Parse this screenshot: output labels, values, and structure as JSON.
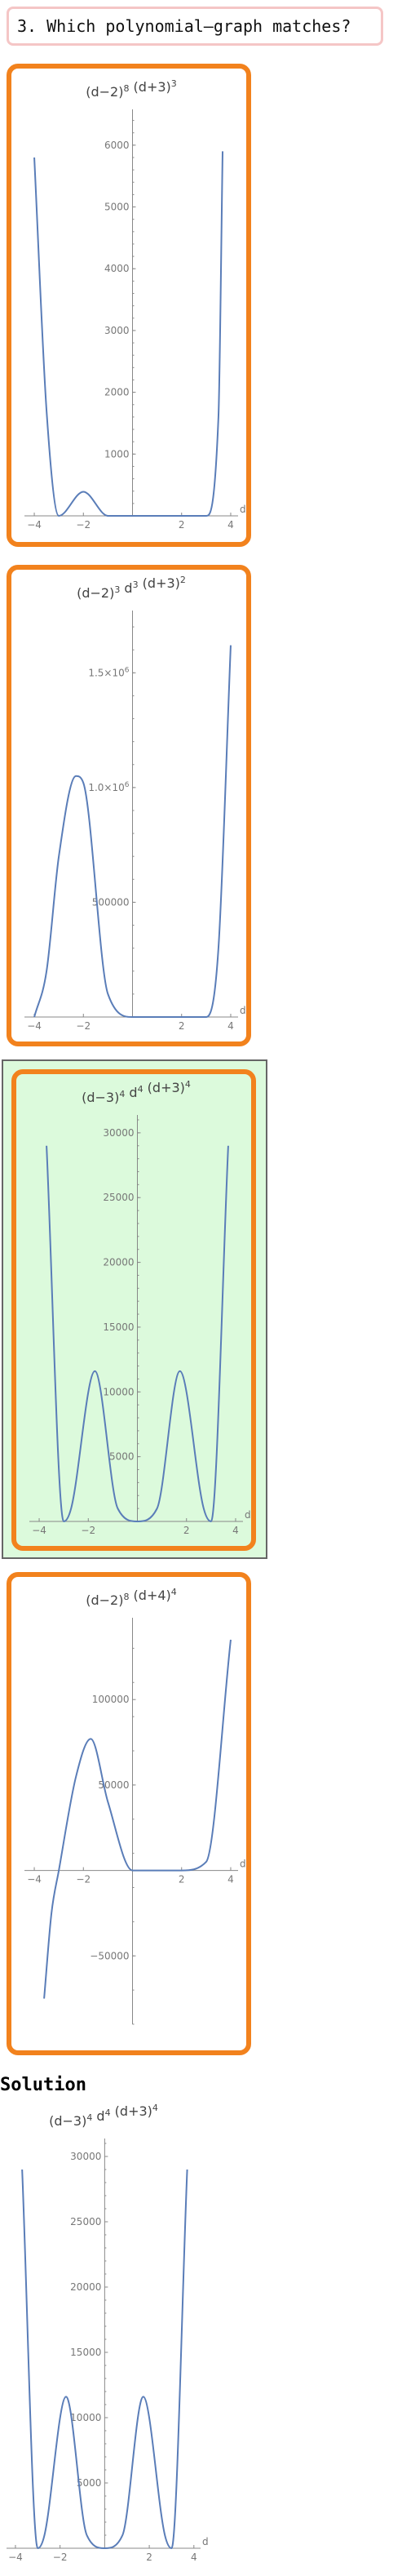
{
  "question": {
    "text": "3. Which polynomial–graph matches?"
  },
  "colors": {
    "choice_border": "#f2821d",
    "correct_bg": "#dcfadc",
    "curve": "#5a7db8",
    "question_border": "#f5c6c6"
  },
  "solution": {
    "heading": "Solution"
  },
  "charts": [
    {
      "id": "choice-1",
      "chart_data": {
        "type": "line",
        "title": "(d − 2)^8 (d + 3)^3",
        "title_parts": [
          "(d−2)",
          "8",
          "(d+3)",
          "3"
        ],
        "xlabel": "d",
        "ylabel": "",
        "xlim": [
          -4.4,
          4.3
        ],
        "ylim": [
          0,
          6500
        ],
        "xticks": [
          -4,
          -2,
          2,
          4
        ],
        "yticks": [
          1000,
          2000,
          3000,
          4000,
          5000,
          6000
        ],
        "ytick_labels": [
          "1000",
          "2000",
          "3000",
          "4000",
          "5000",
          "6000"
        ],
        "x": [
          -4.0,
          -3.5,
          -3.0,
          -2.0,
          -1.0,
          0.0,
          1.0,
          2.0,
          3.0,
          3.5,
          3.67
        ],
        "y": [
          5800,
          1700,
          0,
          390,
          0,
          0,
          0,
          0,
          0,
          1600,
          5900
        ],
        "grid": false
      }
    },
    {
      "id": "choice-2",
      "chart_data": {
        "type": "line",
        "title": "(d − 2)^3 d^3 (d + 3)^2",
        "title_parts": [
          "(d−2)",
          "3",
          "d",
          "3",
          "(d+3)",
          "2"
        ],
        "xlabel": "d",
        "ylabel": "",
        "xlim": [
          -4.4,
          4.3
        ],
        "ylim": [
          0,
          1750000
        ],
        "xticks": [
          -4,
          -2,
          2,
          4
        ],
        "yticks": [
          500000,
          1000000,
          1500000
        ],
        "ytick_labels": [
          "500000",
          "1.0×10^6",
          "1.5×10^6"
        ],
        "x": [
          -4.0,
          -3.5,
          -3.0,
          -2.3,
          -2.0,
          -1.0,
          0.0,
          1.0,
          2.0,
          3.0,
          3.5,
          4.0
        ],
        "y": [
          0,
          200000,
          700000,
          1050000,
          1020000,
          100000,
          0,
          0,
          0,
          0,
          300000,
          1620000
        ],
        "grid": false
      }
    },
    {
      "id": "choice-3",
      "chart_data": {
        "type": "line",
        "title": "(d − 3)^4 d^4 (d + 3)^4",
        "title_parts": [
          "(d−3)",
          "4",
          "d",
          "4",
          "(d+3)",
          "4"
        ],
        "xlabel": "d",
        "ylabel": "",
        "xlim": [
          -4.4,
          4.3
        ],
        "ylim": [
          0,
          31000
        ],
        "xticks": [
          -4,
          -2,
          2,
          4
        ],
        "yticks": [
          5000,
          10000,
          15000,
          20000,
          25000,
          30000
        ],
        "ytick_labels": [
          "5000",
          "10000",
          "15000",
          "20000",
          "25000",
          "30000"
        ],
        "x": [
          -3.7,
          -3.0,
          -2.7,
          -1.73,
          -0.8,
          0.0,
          0.8,
          1.73,
          2.7,
          3.0,
          3.7
        ],
        "y": [
          29000,
          0,
          1000,
          11600,
          1000,
          0,
          1000,
          11600,
          1000,
          0,
          29000
        ],
        "grid": false
      }
    },
    {
      "id": "choice-4",
      "chart_data": {
        "type": "line",
        "title": "(d − 2)^8 (d + 4)^4",
        "title_parts": [
          "(d−2)",
          "8",
          "(d+4)",
          "4"
        ],
        "xlabel": "d",
        "ylabel": "",
        "xlim": [
          -4.4,
          4.3
        ],
        "ylim": [
          -90000,
          145000
        ],
        "xticks": [
          -4,
          -2,
          2,
          4
        ],
        "yticks": [
          -50000,
          50000,
          100000
        ],
        "ytick_labels": [
          "−50000",
          "50000",
          "100000"
        ],
        "x": [
          -3.6,
          -3.3,
          -3.0,
          -2.3,
          -1.7,
          -1.0,
          0.0,
          1.0,
          2.0,
          3.0,
          4.0
        ],
        "y": [
          -75000,
          -25000,
          0,
          55000,
          77000,
          40000,
          0,
          0,
          0,
          5000,
          135000
        ],
        "grid": false
      }
    },
    {
      "id": "solution-chart",
      "chart_data": {
        "type": "line",
        "title": "(d − 3)^4 d^4 (d + 3)^4",
        "title_parts": [
          "(d−3)",
          "4",
          "d",
          "4",
          "(d+3)",
          "4"
        ],
        "xlabel": "d",
        "ylabel": "",
        "xlim": [
          -4.4,
          4.3
        ],
        "ylim": [
          0,
          31000
        ],
        "xticks": [
          -4,
          -2,
          2,
          4
        ],
        "yticks": [
          5000,
          10000,
          15000,
          20000,
          25000,
          30000
        ],
        "ytick_labels": [
          "5000",
          "10000",
          "15000",
          "20000",
          "25000",
          "30000"
        ],
        "x": [
          -3.7,
          -3.0,
          -2.7,
          -1.73,
          -0.8,
          0.0,
          0.8,
          1.73,
          2.7,
          3.0,
          3.7
        ],
        "y": [
          29000,
          0,
          1000,
          11600,
          1000,
          0,
          1000,
          11600,
          1000,
          0,
          29000
        ],
        "grid": false
      }
    }
  ]
}
